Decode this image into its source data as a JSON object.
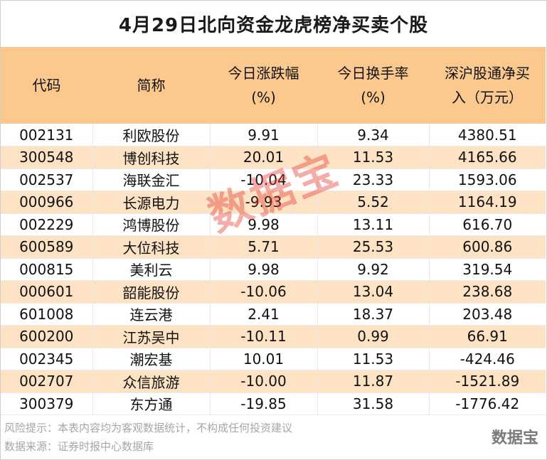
{
  "title": "4月29日北向资金龙虎榜净买卖个股",
  "colors": {
    "header_bg": "#fbc98e",
    "stripe_bg": "#fde3c3",
    "watermark": "#e63c32"
  },
  "table": {
    "headers": {
      "code": "代码",
      "name": "简称",
      "change_line1": "今日涨跌幅",
      "change_line2": "(%)",
      "turnover_line1": "今日换手率",
      "turnover_line2": "(%)",
      "netbuy_line1": "深沪股通净买",
      "netbuy_line2": "入（万元）"
    },
    "rows": [
      {
        "code": "002131",
        "name": "利欧股份",
        "change": "9.91",
        "turnover": "9.34",
        "netbuy": "4380.51"
      },
      {
        "code": "300548",
        "name": "博创科技",
        "change": "20.01",
        "turnover": "11.53",
        "netbuy": "4165.66"
      },
      {
        "code": "002537",
        "name": "海联金汇",
        "change": "-10.04",
        "turnover": "23.33",
        "netbuy": "1593.06"
      },
      {
        "code": "000966",
        "name": "长源电力",
        "change": "-9.93",
        "turnover": "5.52",
        "netbuy": "1164.19"
      },
      {
        "code": "002229",
        "name": "鸿博股份",
        "change": "9.98",
        "turnover": "13.11",
        "netbuy": "616.70"
      },
      {
        "code": "600589",
        "name": "大位科技",
        "change": "5.71",
        "turnover": "25.53",
        "netbuy": "600.86"
      },
      {
        "code": "000815",
        "name": "美利云",
        "change": "9.98",
        "turnover": "9.92",
        "netbuy": "319.54"
      },
      {
        "code": "000601",
        "name": "韶能股份",
        "change": "-10.06",
        "turnover": "13.04",
        "netbuy": "238.68"
      },
      {
        "code": "601008",
        "name": "连云港",
        "change": "2.41",
        "turnover": "18.37",
        "netbuy": "203.48"
      },
      {
        "code": "600200",
        "name": "江苏吴中",
        "change": "-10.11",
        "turnover": "0.99",
        "netbuy": "66.91"
      },
      {
        "code": "002345",
        "name": "潮宏基",
        "change": "10.01",
        "turnover": "11.53",
        "netbuy": "-424.46"
      },
      {
        "code": "002707",
        "name": "众信旅游",
        "change": "-10.00",
        "turnover": "11.87",
        "netbuy": "-1521.89"
      },
      {
        "code": "300379",
        "name": "东方通",
        "change": "-19.85",
        "turnover": "31.58",
        "netbuy": "-1776.42"
      }
    ]
  },
  "footer": {
    "risk_note": "风险提示：本表内容均为客观数据统计，不构成任何投资建议",
    "source": "数据来源：证券时报中心数据库"
  },
  "watermark_text": "数据宝",
  "brand": "数据宝"
}
